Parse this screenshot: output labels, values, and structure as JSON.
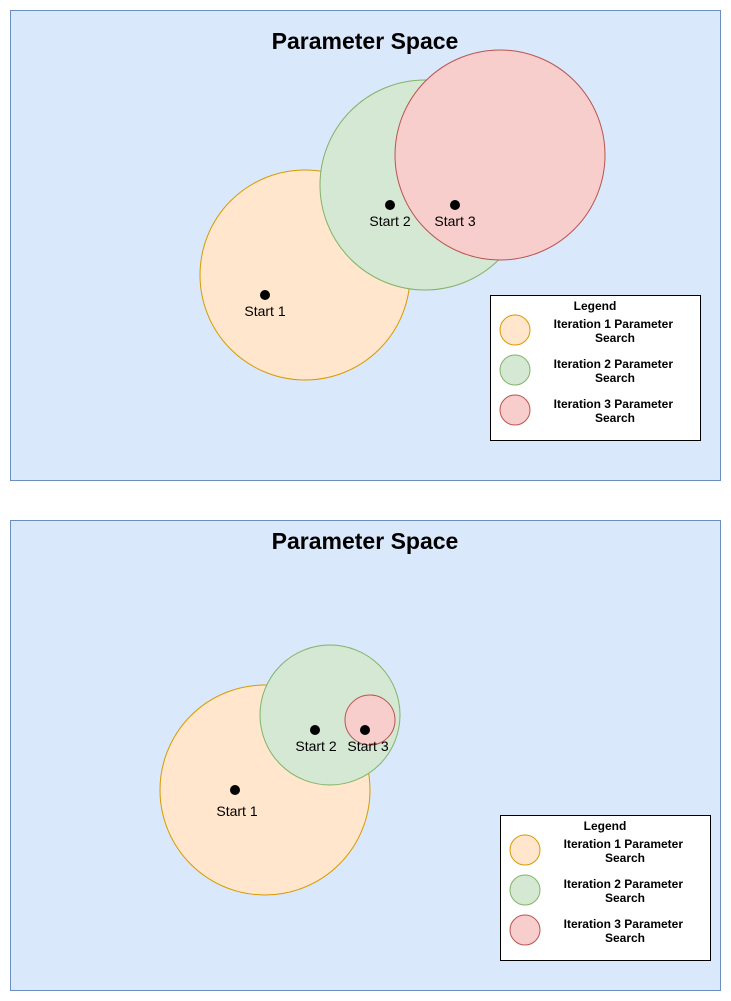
{
  "colors": {
    "canvas_fill": "#dae8fc",
    "canvas_stroke": "#6c8ebf",
    "iter1_fill": "#ffe6cc",
    "iter1_stroke": "#d79b00",
    "iter2_fill": "#d5e8d4",
    "iter2_stroke": "#82b366",
    "iter3_fill": "#f8cecc",
    "iter3_stroke": "#b85450",
    "legend_fill": "#ffffff",
    "legend_stroke": "#000000",
    "point": "#000000",
    "text": "#000000"
  },
  "panels": [
    {
      "title": "Parameter Space",
      "starts": [
        {
          "label": "Start 1"
        },
        {
          "label": "Start 2"
        },
        {
          "label": "Start 3"
        }
      ],
      "legend": {
        "title": "Legend",
        "items": [
          {
            "line1": "Iteration 1 Parameter",
            "line2": "Search"
          },
          {
            "line1": "Iteration 2 Parameter",
            "line2": "Search"
          },
          {
            "line1": "Iteration 3 Parameter",
            "line2": "Search"
          }
        ]
      }
    },
    {
      "title": "Parameter Space",
      "starts": [
        {
          "label": "Start 1"
        },
        {
          "label": "Start 2"
        },
        {
          "label": "Start 3"
        }
      ],
      "legend": {
        "title": "Legend",
        "items": [
          {
            "line1": "Iteration 1 Parameter",
            "line2": "Search"
          },
          {
            "line1": "Iteration 2 Parameter",
            "line2": "Search"
          },
          {
            "line1": "Iteration 3 Parameter",
            "line2": "Search"
          }
        ]
      }
    }
  ]
}
